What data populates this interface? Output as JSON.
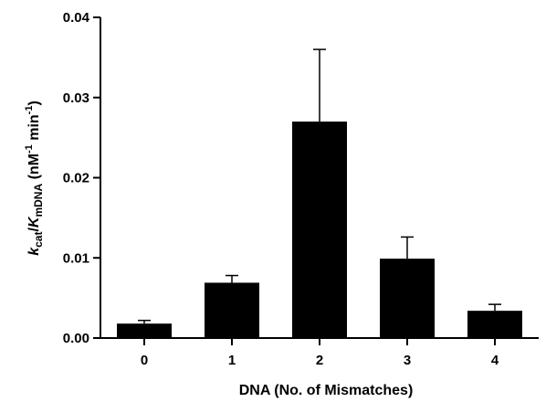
{
  "chart_data": {
    "type": "bar",
    "categories": [
      "0",
      "1",
      "2",
      "3",
      "4"
    ],
    "values": [
      0.0018,
      0.0069,
      0.027,
      0.0099,
      0.0034
    ],
    "errors": [
      0.0004,
      0.0009,
      0.009,
      0.0027,
      0.0008
    ],
    "xlabel": "DNA (No. of Mismatches)",
    "ylabel": {
      "k": "k",
      "cat": "cat",
      "slash": "/",
      "K": "K",
      "mDNA": "mDNA",
      "units_open": " (nM",
      "exp1": "-1",
      "min": " min",
      "exp2": "-1",
      "units_close": ")"
    },
    "ylim": [
      0,
      0.04
    ],
    "yticks": [
      "0.00",
      "0.01",
      "0.02",
      "0.03",
      "0.04"
    ],
    "bar_color": "#000000",
    "grid": false,
    "legend": "none"
  }
}
